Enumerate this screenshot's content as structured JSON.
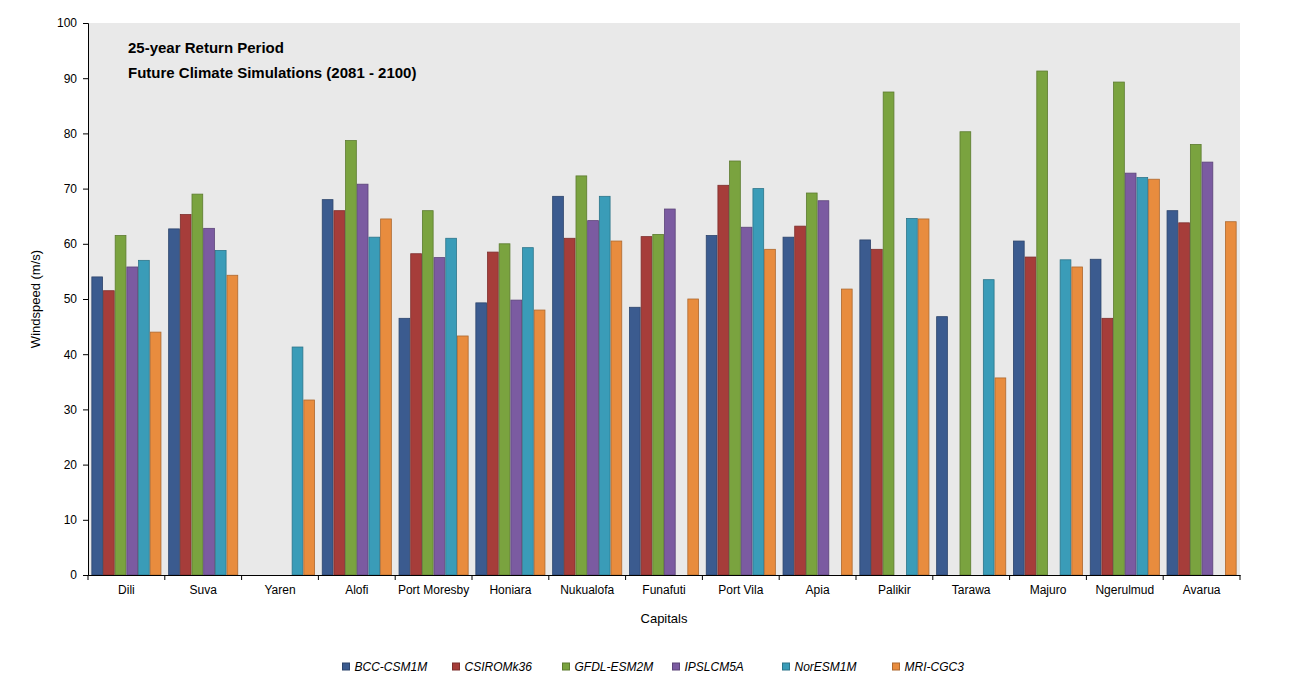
{
  "chart_data": {
    "type": "bar",
    "title": "25-year Return Period",
    "subtitle": "Future Climate Simulations (2081 - 2100)",
    "x_label": "Capitals",
    "y_label": "Windspeed (m/s)",
    "categories": [
      "Dili",
      "Suva",
      "Yaren",
      "Alofi",
      "Port Moresby",
      "Honiara",
      "Nukualofa",
      "Funafuti",
      "Port Vila",
      "Apia",
      "Palikir",
      "Tarawa",
      "Majuro",
      "Ngerulmud",
      "Avarua"
    ],
    "series": [
      {
        "name": "BCC-CSM1M",
        "color": "#3b5b8f",
        "values": [
          54,
          62.7,
          null,
          68,
          46.5,
          49.3,
          68.6,
          48.5,
          61.5,
          61.2,
          60.7,
          46.8,
          60.5,
          57.2,
          66
        ]
      },
      {
        "name": "CSIROMk36",
        "color": "#a63d3a",
        "values": [
          51.5,
          65.3,
          null,
          66,
          58.2,
          58.5,
          61,
          61.3,
          70.6,
          63.2,
          59,
          null,
          57.6,
          46.5,
          63.8
        ]
      },
      {
        "name": "GFDL-ESM2M",
        "color": "#7aa33f",
        "values": [
          61.5,
          69,
          null,
          78.7,
          66,
          60,
          72.3,
          61.7,
          75,
          69.2,
          87.5,
          80.3,
          91.3,
          89.3,
          78
        ]
      },
      {
        "name": "IPSLCM5A",
        "color": "#7b5ba1",
        "values": [
          55.8,
          62.8,
          null,
          70.8,
          57.5,
          49.8,
          64.2,
          66.3,
          63,
          67.8,
          null,
          null,
          null,
          72.8,
          74.8
        ]
      },
      {
        "name": "NorESM1M",
        "color": "#3a9cb8",
        "values": [
          57,
          58.8,
          41.3,
          61.2,
          61,
          59.3,
          68.6,
          null,
          70,
          null,
          64.6,
          53.5,
          57.1,
          72,
          null
        ]
      },
      {
        "name": "MRI-CGC3",
        "color": "#e88c3e",
        "values": [
          44,
          54.3,
          31.7,
          64.5,
          43.3,
          48,
          60.5,
          50,
          59,
          51.8,
          64.5,
          35.7,
          55.8,
          71.7,
          64
        ]
      }
    ],
    "ylim": [
      0,
      100
    ],
    "yticks": [
      0,
      10,
      20,
      30,
      40,
      50,
      60,
      70,
      80,
      90,
      100
    ],
    "grid": false,
    "legend": "bottom"
  }
}
